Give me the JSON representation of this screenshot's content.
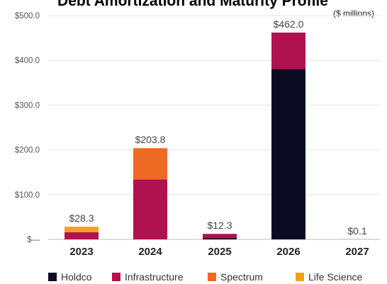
{
  "chart_data": {
    "type": "bar",
    "stacked": true,
    "title": "Debt Amortization and Maturity Profile",
    "units_note": "($ millions)",
    "categories": [
      "2023",
      "2024",
      "2025",
      "2026",
      "2027"
    ],
    "ylim": [
      0,
      500
    ],
    "yticks": [
      {
        "value": 0,
        "label": "$—"
      },
      {
        "value": 100,
        "label": "$100.0"
      },
      {
        "value": 200,
        "label": "$200.0"
      },
      {
        "value": 300,
        "label": "$300.0"
      },
      {
        "value": 400,
        "label": "$400.0"
      },
      {
        "value": 500,
        "label": "$500.0"
      }
    ],
    "grid": true,
    "legend_position": "bottom",
    "series": [
      {
        "name": "Holdco",
        "color": "#0b0b24",
        "values": [
          0,
          0,
          3,
          381,
          0.1
        ]
      },
      {
        "name": "Infrastructure",
        "color": "#b0124f",
        "values": [
          16,
          134,
          9.3,
          81,
          0
        ]
      },
      {
        "name": "Spectrum",
        "color": "#ef6a25",
        "values": [
          0,
          69.8,
          0,
          0,
          0
        ]
      },
      {
        "name": "Life Science",
        "color": "#f2a11d",
        "values": [
          12.3,
          0,
          0,
          0,
          0
        ]
      }
    ],
    "totals_labels": [
      "$28.3",
      "$203.8",
      "$12.3",
      "$462.0",
      "$0.1"
    ]
  }
}
